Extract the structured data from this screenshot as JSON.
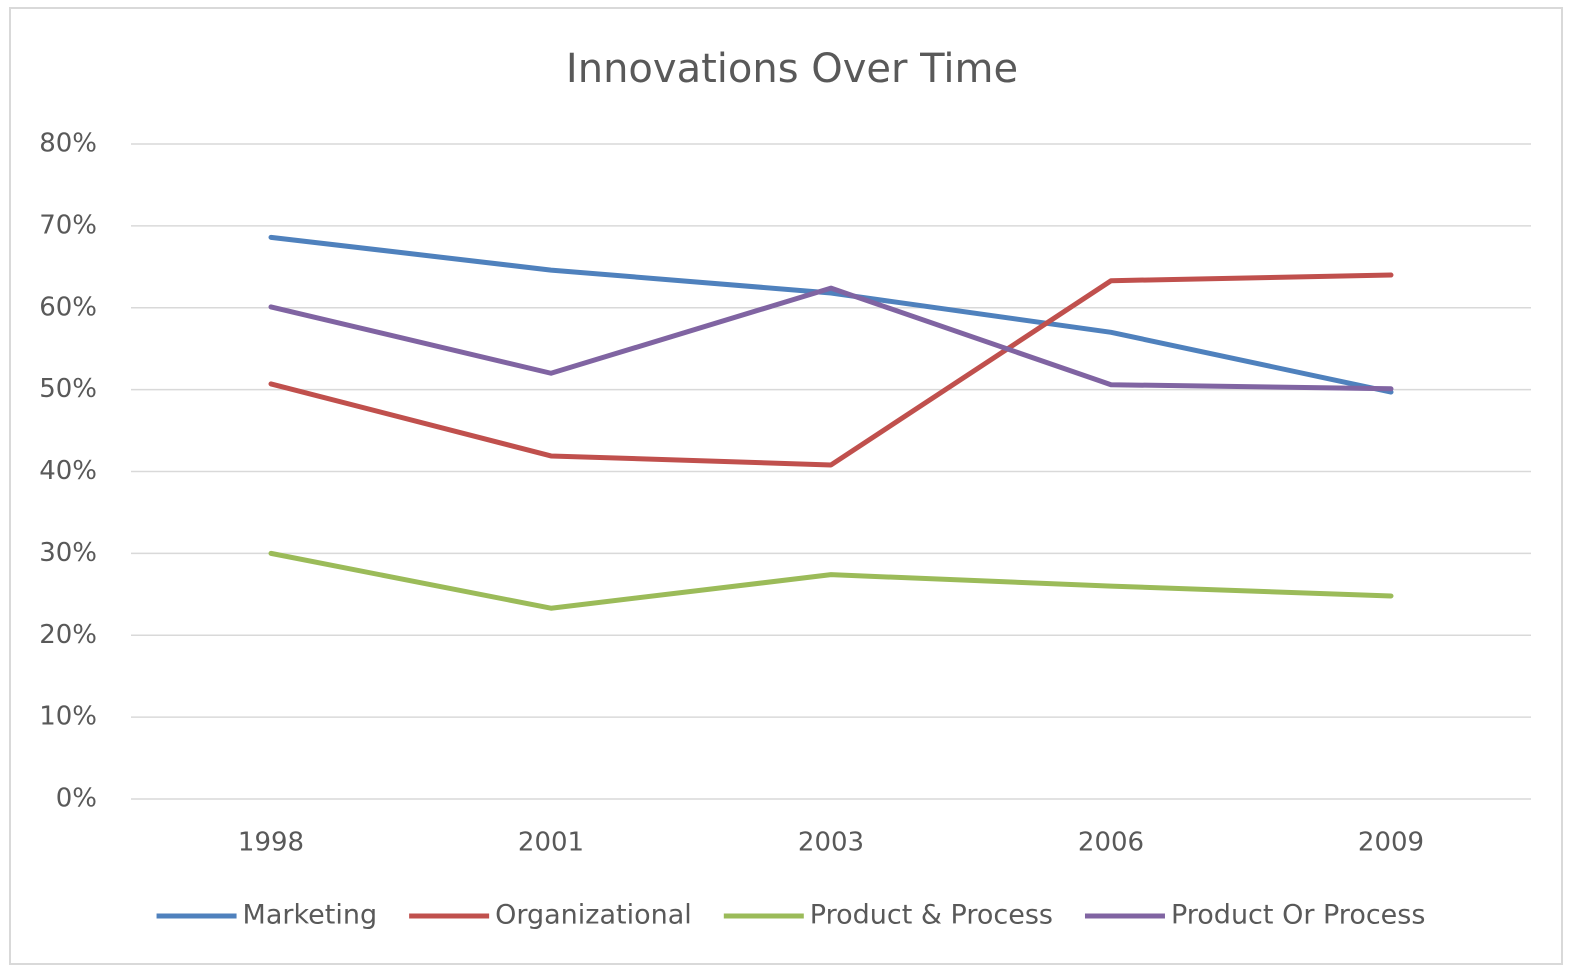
{
  "chart_data": {
    "type": "line",
    "title": "Innovations Over Time",
    "categories": [
      "1998",
      "2001",
      "2003",
      "2006",
      "2009"
    ],
    "series": [
      {
        "name": "Marketing",
        "color": "#4f81bd",
        "values": [
          68.6,
          64.6,
          61.8,
          57.0,
          49.7
        ]
      },
      {
        "name": "Organizational",
        "color": "#c0504d",
        "values": [
          50.7,
          41.9,
          40.8,
          63.3,
          64.0
        ]
      },
      {
        "name": "Product & Process",
        "color": "#9bbb59",
        "values": [
          30.0,
          23.3,
          27.4,
          26.0,
          24.8
        ]
      },
      {
        "name": "Product Or Process",
        "color": "#8064a2",
        "values": [
          60.1,
          52.0,
          62.4,
          50.6,
          50.1
        ]
      }
    ],
    "ylim": [
      0,
      80
    ],
    "yticks": [
      {
        "value": 0,
        "label": "0%"
      },
      {
        "value": 10,
        "label": "10%"
      },
      {
        "value": 20,
        "label": "20%"
      },
      {
        "value": 30,
        "label": "30%"
      },
      {
        "value": 40,
        "label": "40%"
      },
      {
        "value": 50,
        "label": "50%"
      },
      {
        "value": 60,
        "label": "60%"
      },
      {
        "value": 70,
        "label": "70%"
      },
      {
        "value": 80,
        "label": "80%"
      }
    ],
    "grid": true,
    "legend": "bottom"
  }
}
